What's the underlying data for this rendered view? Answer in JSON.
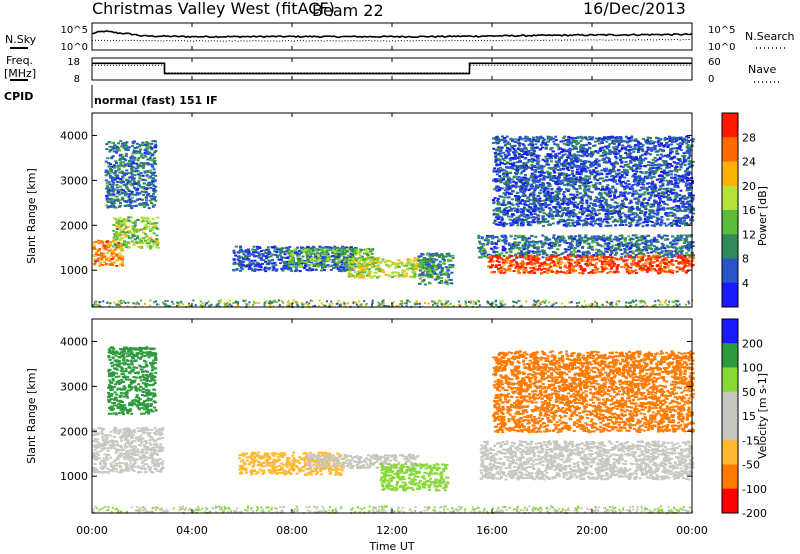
{
  "header": {
    "station": "Christmas Valley West (fitACF)",
    "beam": "Beam 22",
    "date": "16/Dec/2013"
  },
  "noise_panel": {
    "left_label": "N.Sky",
    "right_label": "N.Search",
    "left_ticks": [
      "10^5",
      "10^0"
    ],
    "right_ticks": [
      "10^5",
      "10^0"
    ]
  },
  "freq_panel": {
    "left_label_line1": "Freq.",
    "left_label_line2": "[MHz]",
    "right_label": "Nave",
    "left_ticks": [
      "18",
      "8"
    ],
    "right_ticks": [
      "60",
      "0"
    ]
  },
  "cpid": {
    "label": "CPID",
    "text": "normal (fast) 151 IF"
  },
  "x_axis": {
    "label": "Time UT",
    "ticks": [
      "00:00",
      "04:00",
      "08:00",
      "12:00",
      "16:00",
      "20:00",
      "00:00"
    ]
  },
  "colors": {
    "power": [
      "#1a1aff",
      "#2a55c8",
      "#2e8a5a",
      "#5cbb3c",
      "#b6e03c",
      "#ffb000",
      "#ff6a00",
      "#ff1a00"
    ],
    "velocity": [
      "#ff0000",
      "#ff7a00",
      "#ffb830",
      "#c8c8c0",
      "#c8c8c0",
      "#88d838",
      "#2e9a3e",
      "#1a1aff"
    ]
  },
  "chart_data": [
    {
      "type": "line",
      "x_unit": "hours UT",
      "xlim": [
        0,
        24
      ],
      "series": [
        {
          "name": "N.Sky",
          "x": [
            0,
            0.5,
            1,
            2,
            3,
            4,
            6,
            8,
            10,
            12,
            14,
            16,
            18,
            20,
            22,
            24
          ],
          "y": [
            1000,
            3000,
            1500,
            400,
            350,
            300,
            300,
            320,
            300,
            300,
            320,
            400,
            500,
            600,
            700,
            800
          ]
        },
        {
          "name": "N.Search",
          "x": [
            0,
            4,
            8,
            12,
            16,
            20,
            24
          ],
          "y": [
            60,
            50,
            50,
            50,
            60,
            70,
            80
          ]
        }
      ],
      "ylim": [
        1,
        100000
      ],
      "yscale": "log"
    },
    {
      "type": "line",
      "x_unit": "hours UT",
      "xlim": [
        0,
        24
      ],
      "series": [
        {
          "name": "Freq.",
          "x": [
            0,
            2.9,
            2.9,
            15.1,
            15.1,
            24
          ],
          "y": [
            15.6,
            15.6,
            10.9,
            10.9,
            15.6,
            15.6
          ]
        },
        {
          "name": "Nave",
          "x": [
            0,
            2.9,
            2.9,
            15.1,
            15.1,
            24
          ],
          "y": [
            40,
            40,
            20,
            20,
            40,
            40
          ]
        }
      ],
      "ylim_left": [
        8,
        18
      ],
      "ylim_right": [
        0,
        60
      ]
    },
    {
      "type": "heatmap",
      "ylabel": "Slant Range [km]",
      "xlabel": "",
      "xlim": [
        0,
        24
      ],
      "ylim": [
        180,
        4500
      ],
      "yticks": [
        1000,
        2000,
        3000,
        4000
      ],
      "colorbar": {
        "label": "Power [dB]",
        "ticks": [
          4,
          8,
          12,
          16,
          20,
          24,
          28
        ],
        "range": [
          0,
          32
        ]
      },
      "regions": [
        {
          "t0": 0,
          "t1": 1.2,
          "r0": 1100,
          "r1": 1700,
          "value": 24
        },
        {
          "t0": 0.8,
          "t1": 2.6,
          "r0": 1500,
          "r1": 2200,
          "value": 16
        },
        {
          "t0": 0.5,
          "t1": 2.5,
          "r0": 2400,
          "r1": 3900,
          "value": 8
        },
        {
          "t0": 5.6,
          "t1": 10.5,
          "r0": 1000,
          "r1": 1550,
          "value": 6
        },
        {
          "t0": 7.8,
          "t1": 11.2,
          "r0": 1100,
          "r1": 1500,
          "value": 14
        },
        {
          "t0": 10.2,
          "t1": 13.6,
          "r0": 850,
          "r1": 1300,
          "value": 18
        },
        {
          "t0": 13.0,
          "t1": 14.4,
          "r0": 700,
          "r1": 1400,
          "value": 10
        },
        {
          "t0": 15.4,
          "t1": 24,
          "r0": 1300,
          "r1": 1800,
          "value": 8
        },
        {
          "t0": 15.8,
          "t1": 24,
          "r0": 950,
          "r1": 1350,
          "value": 28
        },
        {
          "t0": 16.0,
          "t1": 24,
          "r0": 2000,
          "r1": 4000,
          "value": 6
        }
      ]
    },
    {
      "type": "heatmap",
      "ylabel": "Slant Range [km]",
      "xlabel": "Time UT",
      "xlim": [
        0,
        24
      ],
      "ylim": [
        180,
        4500
      ],
      "yticks": [
        1000,
        2000,
        3000,
        4000
      ],
      "colorbar": {
        "label": "Velocity [m s-1]",
        "ticks": [
          200,
          100,
          50,
          15,
          -15,
          -50,
          -100,
          -200
        ],
        "range": [
          -250,
          250
        ]
      },
      "regions": [
        {
          "t0": 0,
          "t1": 2.8,
          "r0": 1100,
          "r1": 2100,
          "value": 0
        },
        {
          "t0": 0.6,
          "t1": 2.5,
          "r0": 2400,
          "r1": 3900,
          "value": 60
        },
        {
          "t0": 5.8,
          "t1": 10,
          "r0": 1050,
          "r1": 1550,
          "value": -60
        },
        {
          "t0": 8.5,
          "t1": 13,
          "r0": 1200,
          "r1": 1500,
          "value": 0
        },
        {
          "t0": 11.5,
          "t1": 14.2,
          "r0": 700,
          "r1": 1300,
          "value": 30
        },
        {
          "t0": 15.5,
          "t1": 24,
          "r0": 950,
          "r1": 1800,
          "value": 0
        },
        {
          "t0": 16,
          "t1": 24,
          "r0": 2000,
          "r1": 3800,
          "value": -120
        }
      ]
    }
  ]
}
